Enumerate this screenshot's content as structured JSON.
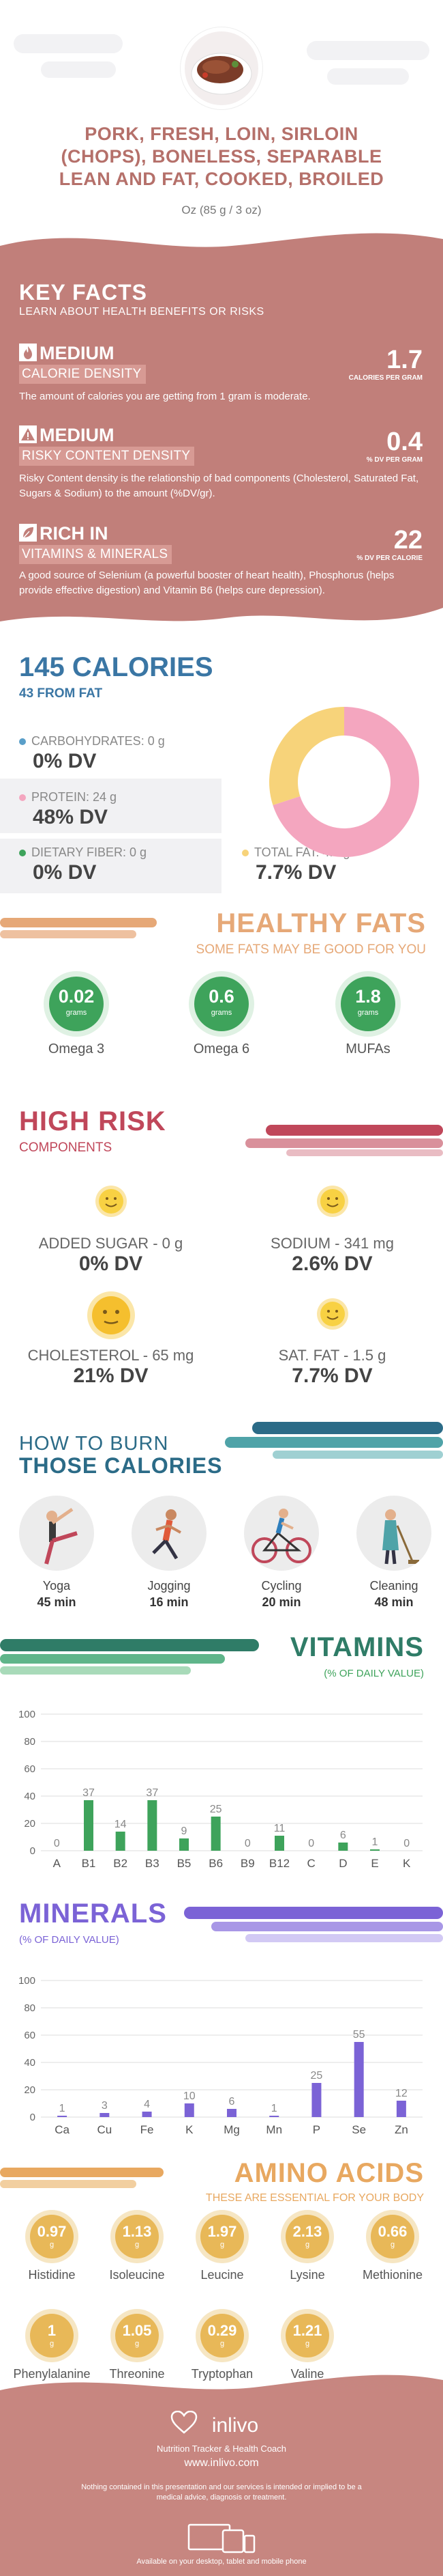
{
  "header": {
    "title_lines": [
      "PORK, FRESH, LOIN, SIRLOIN",
      "(CHOPS), BONELESS, SEPARABLE",
      "LEAN AND FAT, COOKED, BROILED"
    ],
    "serving": "Oz (85 g / 3 oz)"
  },
  "key_facts": {
    "title": "KEY FACTS",
    "subtitle": "LEARN ABOUT HEALTH BENEFITS OR RISKS",
    "items": [
      {
        "icon": "flame-icon",
        "badge": "MEDIUM",
        "category": "CALORIE DENSITY",
        "value": "1.7",
        "unit": "CALORIES PER GRAM",
        "desc": "The amount of calories you are getting from 1 gram is moderate."
      },
      {
        "icon": "warning-icon",
        "badge": "MEDIUM",
        "category": "RISKY CONTENT DENSITY",
        "value": "0.4",
        "unit": "% DV PER GRAM",
        "desc": "Risky Content density is the relationship of bad components (Cholesterol, Saturated Fat, Sugars & Sodium) to the amount (%DV/gr)."
      },
      {
        "icon": "leaf-icon",
        "badge": "RICH  IN",
        "category": "VITAMINS & MINERALS",
        "value": "22",
        "unit": "% DV PER CALORIE",
        "desc": "A good source of Selenium (a powerful booster of heart health), Phosphorus (helps provide effective digestion) and Vitamin B6 (helps cure depression)."
      }
    ]
  },
  "calories": {
    "title": "145 CALORIES",
    "from_fat": "43 FROM FAT",
    "nutrients": [
      {
        "label": "CARBOHYDRATES: 0 g",
        "dv": "0% DV",
        "color": "#5a9fc9"
      },
      {
        "label": "PROTEIN: 24 g",
        "dv": "48% DV",
        "color": "#f4a6bf"
      },
      {
        "label": "DIETARY FIBER: 0 g",
        "dv": "0% DV",
        "color": "#3ea35b"
      },
      {
        "label": "TOTAL FAT: 4.7 g",
        "dv": "7.7% DV",
        "color": "#f7d37a"
      }
    ],
    "donut": {
      "protein": 0.7,
      "fat": 0.3,
      "protein_color": "#f4a6bf",
      "fat_color": "#f7d37a"
    }
  },
  "healthy_fats": {
    "title": "HEALTHY FATS",
    "subtitle": "SOME FATS MAY BE GOOD FOR YOU",
    "items": [
      {
        "value": "0.02",
        "unit": "grams",
        "name": "Omega 3"
      },
      {
        "value": "0.6",
        "unit": "grams",
        "name": "Omega 6"
      },
      {
        "value": "1.8",
        "unit": "grams",
        "name": "MUFAs"
      }
    ]
  },
  "high_risk": {
    "title": "HIGH RISK",
    "subtitle": "COMPONENTS",
    "items": [
      {
        "label": "ADDED SUGAR - 0 g",
        "dv": "0% DV",
        "face": "happy-face-icon"
      },
      {
        "label": "SODIUM - 341 mg",
        "dv": "2.6% DV",
        "face": "happy-face-icon"
      },
      {
        "label": "CHOLESTEROL - 65 mg",
        "dv": "21% DV",
        "face": "neutral-face-icon"
      },
      {
        "label": "SAT. FAT - 1.5 g",
        "dv": "7.7% DV",
        "face": "happy-face-icon"
      }
    ]
  },
  "burn": {
    "title1": "HOW TO BURN",
    "title2": "THOSE CALORIES",
    "items": [
      {
        "name": "Yoga",
        "minutes": "45 min",
        "icon": "yoga-icon"
      },
      {
        "name": "Jogging",
        "minutes": "16 min",
        "icon": "jogging-icon"
      },
      {
        "name": "Cycling",
        "minutes": "20 min",
        "icon": "cycling-icon"
      },
      {
        "name": "Cleaning",
        "minutes": "48 min",
        "icon": "cleaning-icon"
      }
    ]
  },
  "vitamins": {
    "title": "VITAMINS",
    "subtitle": "(% OF DAILY VALUE)",
    "chart_data": {
      "type": "bar",
      "categories": [
        "A",
        "B1",
        "B2",
        "B3",
        "B5",
        "B6",
        "B9",
        "B12",
        "C",
        "D",
        "E",
        "K"
      ],
      "values": [
        0,
        37,
        14,
        37,
        9,
        25,
        0,
        11,
        0,
        6,
        1,
        0
      ],
      "ylim": [
        0,
        100
      ],
      "yticks": [
        0,
        20,
        40,
        60,
        80,
        100
      ],
      "grid": true,
      "color": "#3ea35b"
    }
  },
  "minerals": {
    "title": "MINERALS",
    "subtitle": "(% OF DAILY VALUE)",
    "chart_data": {
      "type": "bar",
      "categories": [
        "Ca",
        "Cu",
        "Fe",
        "K",
        "Mg",
        "Mn",
        "P",
        "Se",
        "Zn"
      ],
      "values": [
        1,
        3,
        4,
        10,
        6,
        1,
        25,
        55,
        12
      ],
      "ylim": [
        0,
        100
      ],
      "yticks": [
        0,
        20,
        40,
        60,
        80,
        100
      ],
      "grid": true,
      "color": "#7b63d6"
    }
  },
  "amino": {
    "title": "AMINO ACIDS",
    "subtitle": "THESE ARE ESSENTIAL FOR YOUR BODY",
    "items": [
      {
        "value": "0.97",
        "unit": "g",
        "name": "Histidine"
      },
      {
        "value": "1.13",
        "unit": "g",
        "name": "Isoleucine"
      },
      {
        "value": "1.97",
        "unit": "g",
        "name": "Leucine"
      },
      {
        "value": "2.13",
        "unit": "g",
        "name": "Lysine"
      },
      {
        "value": "0.66",
        "unit": "g",
        "name": "Methionine"
      },
      {
        "value": "1",
        "unit": "g",
        "name": "Phenylalanine"
      },
      {
        "value": "1.05",
        "unit": "g",
        "name": "Threonine"
      },
      {
        "value": "0.29",
        "unit": "g",
        "name": "Tryptophan"
      },
      {
        "value": "1.21",
        "unit": "g",
        "name": "Valine"
      }
    ]
  },
  "footer": {
    "logo": "inlivo",
    "tagline": "Nutrition Tracker & Health Coach",
    "url": "www.inlivo.com",
    "disclaimer": "Nothing contained in this presentation and our services is intended or implied to be a medical advice, diagnosis or treatment.",
    "available": "Available on your desktop, tablet and mobile phone"
  },
  "colors": {
    "keyfacts_bg": "#c17f7a",
    "keyfacts_band": "#d79a94",
    "footer_bg": "#c78680"
  }
}
